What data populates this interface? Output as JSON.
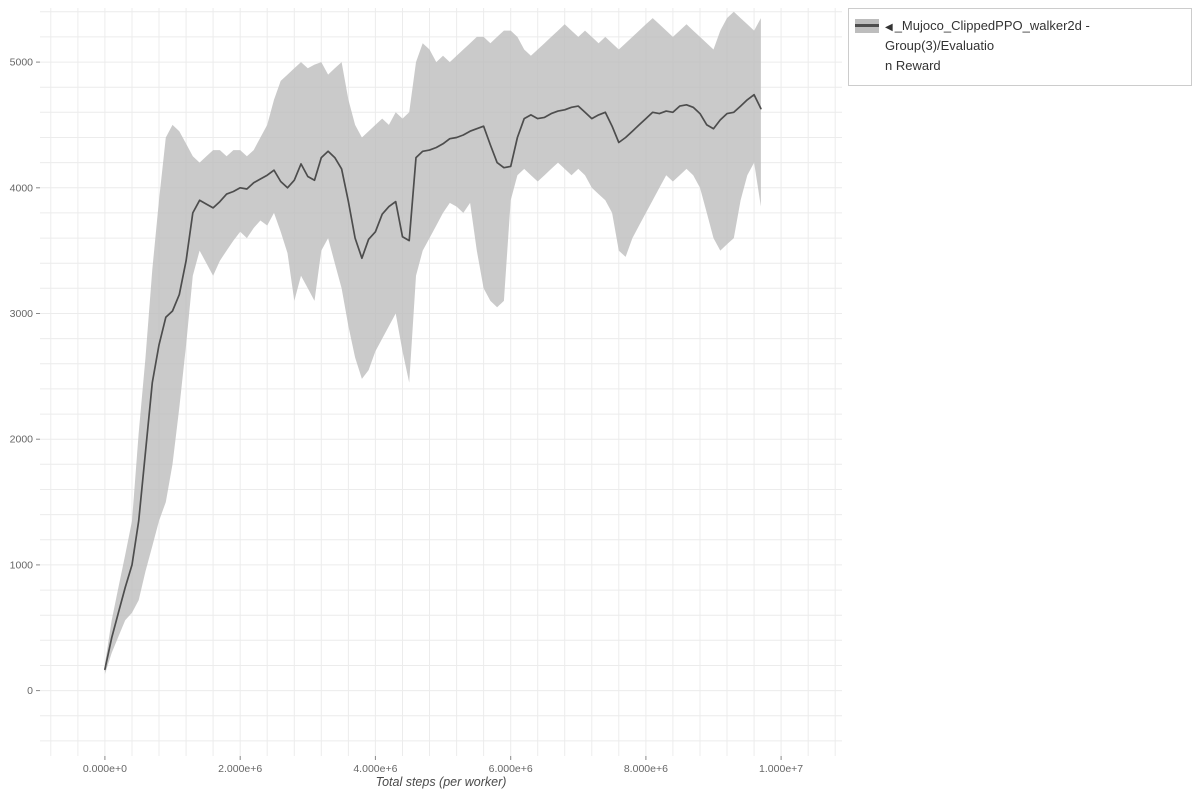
{
  "legend": {
    "collapse_icon": "◀",
    "label_line1": "_Mujoco_ClippedPPO_walker2d - Group(3)/Evaluatio",
    "label_line2": "n Reward"
  },
  "chart_data": {
    "type": "line",
    "title": "",
    "xlabel": "Total steps (per worker)",
    "ylabel": "",
    "series_name": "_Mujoco_ClippedPPO_walker2d - Group(3)/Evaluation Reward",
    "legend_position": "top-right",
    "grid_on": true,
    "xlim": [
      -960000,
      10900000
    ],
    "ylim": [
      -520,
      5430
    ],
    "x_ticks": [
      {
        "v": 0,
        "label": "0.000e+0"
      },
      {
        "v": 2000000,
        "label": "2.000e+6"
      },
      {
        "v": 4000000,
        "label": "4.000e+6"
      },
      {
        "v": 6000000,
        "label": "6.000e+6"
      },
      {
        "v": 8000000,
        "label": "8.000e+6"
      },
      {
        "v": 10000000,
        "label": "1.000e+7"
      }
    ],
    "y_ticks": [
      {
        "v": 0,
        "label": "0"
      },
      {
        "v": 1000,
        "label": "1000"
      },
      {
        "v": 2000,
        "label": "2000"
      },
      {
        "v": 3000,
        "label": "3000"
      },
      {
        "v": 4000,
        "label": "4000"
      },
      {
        "v": 5000,
        "label": "5000"
      }
    ],
    "grid": {
      "x_start": -800000,
      "x_step": 400000,
      "y_start": -400,
      "y_step": 200
    },
    "colors": {
      "band": "#bdbdbd",
      "band_opacity": 0.8,
      "line": "#4d4d4d",
      "grid": "#ececec",
      "tick": "#888888",
      "tick_text": "#666666",
      "axis_label": "#4a4a4a"
    },
    "x": [
      0,
      100000,
      200000,
      300000,
      400000,
      500000,
      600000,
      700000,
      800000,
      900000,
      1000000,
      1100000,
      1200000,
      1300000,
      1400000,
      1500000,
      1600000,
      1700000,
      1800000,
      1900000,
      2000000,
      2100000,
      2200000,
      2300000,
      2400000,
      2500000,
      2600000,
      2700000,
      2800000,
      2900000,
      3000000,
      3100000,
      3200000,
      3300000,
      3400000,
      3500000,
      3600000,
      3700000,
      3800000,
      3900000,
      4000000,
      4100000,
      4200000,
      4300000,
      4400000,
      4500000,
      4600000,
      4700000,
      4800000,
      4900000,
      5000000,
      5100000,
      5200000,
      5300000,
      5400000,
      5500000,
      5600000,
      5700000,
      5800000,
      5900000,
      6000000,
      6100000,
      6200000,
      6300000,
      6400000,
      6500000,
      6600000,
      6700000,
      6800000,
      6900000,
      7000000,
      7100000,
      7200000,
      7300000,
      7400000,
      7500000,
      7600000,
      7700000,
      7800000,
      7900000,
      8000000,
      8100000,
      8200000,
      8300000,
      8400000,
      8500000,
      8600000,
      8700000,
      8800000,
      8900000,
      9000000,
      9100000,
      9200000,
      9300000,
      9400000,
      9500000,
      9600000,
      9700000
    ],
    "mean": [
      170,
      420,
      620,
      820,
      1000,
      1350,
      1900,
      2450,
      2750,
      2970,
      3020,
      3150,
      3420,
      3800,
      3900,
      3870,
      3840,
      3890,
      3950,
      3970,
      4000,
      3990,
      4040,
      4070,
      4100,
      4140,
      4050,
      4000,
      4060,
      4190,
      4090,
      4060,
      4240,
      4290,
      4240,
      4150,
      3890,
      3600,
      3440,
      3590,
      3650,
      3790,
      3850,
      3890,
      3610,
      3580,
      4240,
      4290,
      4300,
      4320,
      4350,
      4390,
      4400,
      4420,
      4450,
      4470,
      4490,
      4340,
      4200,
      4160,
      4170,
      4400,
      4550,
      4580,
      4550,
      4560,
      4590,
      4610,
      4620,
      4640,
      4650,
      4600,
      4550,
      4580,
      4600,
      4490,
      4360,
      4400,
      4450,
      4500,
      4550,
      4600,
      4590,
      4610,
      4600,
      4650,
      4660,
      4640,
      4590,
      4500,
      4470,
      4540,
      4590,
      4600,
      4650,
      4700,
      4740,
      4630
    ],
    "lower": [
      130,
      300,
      430,
      560,
      620,
      720,
      950,
      1150,
      1350,
      1500,
      1800,
      2250,
      2750,
      3300,
      3500,
      3400,
      3300,
      3420,
      3500,
      3580,
      3650,
      3600,
      3680,
      3740,
      3700,
      3800,
      3650,
      3480,
      3100,
      3300,
      3200,
      3100,
      3500,
      3600,
      3400,
      3200,
      2900,
      2650,
      2480,
      2550,
      2700,
      2800,
      2900,
      3000,
      2700,
      2450,
      3300,
      3500,
      3600,
      3700,
      3800,
      3880,
      3850,
      3800,
      3880,
      3500,
      3200,
      3100,
      3050,
      3100,
      3900,
      4100,
      4150,
      4100,
      4050,
      4100,
      4150,
      4200,
      4150,
      4100,
      4150,
      4100,
      4000,
      3950,
      3900,
      3800,
      3500,
      3450,
      3600,
      3700,
      3800,
      3900,
      4000,
      4100,
      4050,
      4100,
      4150,
      4100,
      4000,
      3800,
      3600,
      3500,
      3550,
      3600,
      3900,
      4100,
      4200,
      3850
    ],
    "upper": [
      210,
      560,
      820,
      1080,
      1350,
      2050,
      2650,
      3350,
      3900,
      4400,
      4500,
      4450,
      4350,
      4250,
      4200,
      4250,
      4300,
      4300,
      4250,
      4300,
      4300,
      4250,
      4300,
      4400,
      4500,
      4700,
      4850,
      4900,
      4950,
      5000,
      4950,
      4980,
      5000,
      4900,
      4950,
      5000,
      4700,
      4500,
      4400,
      4450,
      4500,
      4550,
      4500,
      4600,
      4550,
      4600,
      5000,
      5150,
      5100,
      5000,
      5050,
      5000,
      5050,
      5100,
      5150,
      5200,
      5200,
      5150,
      5200,
      5250,
      5250,
      5200,
      5100,
      5050,
      5100,
      5150,
      5200,
      5250,
      5300,
      5250,
      5200,
      5250,
      5200,
      5150,
      5200,
      5150,
      5100,
      5150,
      5200,
      5250,
      5300,
      5350,
      5300,
      5250,
      5200,
      5250,
      5300,
      5250,
      5200,
      5150,
      5100,
      5250,
      5350,
      5400,
      5350,
      5300,
      5250,
      5350
    ]
  }
}
